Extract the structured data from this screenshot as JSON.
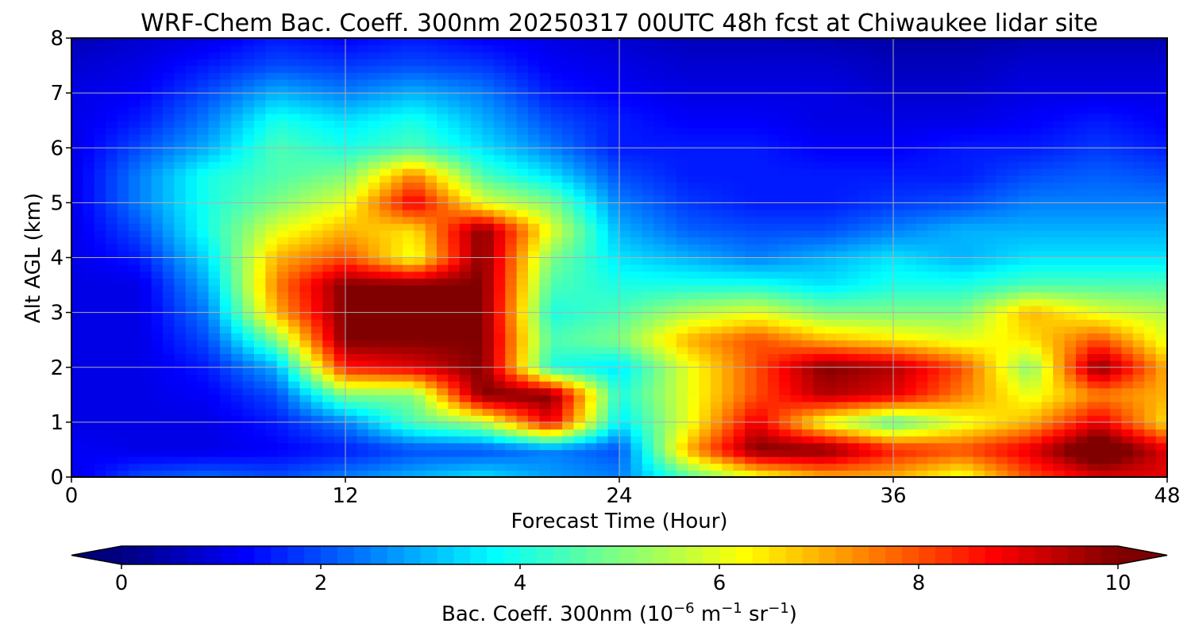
{
  "chart_data": {
    "type": "heatmap",
    "title": "WRF-Chem Bac. Coeff. 300nm  20250317 00UTC 48h fcst at Chiwaukee lidar site",
    "xlabel": "Forecast Time (Hour)",
    "ylabel": "Alt AGL (km)",
    "xlim": [
      0,
      48
    ],
    "ylim": [
      0,
      8
    ],
    "x_ticks": [
      0,
      12,
      24,
      36,
      48
    ],
    "y_ticks": [
      0,
      1,
      2,
      3,
      4,
      5,
      6,
      7,
      8
    ],
    "grid": true,
    "colormap": "jet",
    "colorbar": {
      "orientation": "horizontal",
      "placement": "bottom",
      "ticks": [
        0,
        2,
        4,
        6,
        8,
        10
      ],
      "range": [
        0,
        10
      ],
      "extend": "both",
      "label": {
        "text": "Bac. Coeff. 300nm  (10",
        "exp1": "−6",
        "mid": " m",
        "exp2": "−1",
        "mid2": " sr",
        "exp3": "−1",
        "end": ")"
      }
    },
    "x": [
      0,
      3,
      6,
      9,
      12,
      15,
      18,
      21,
      24,
      27,
      30,
      33,
      36,
      39,
      42,
      45,
      48
    ],
    "y": [
      0,
      0.5,
      1,
      1.5,
      2,
      2.5,
      3,
      3.5,
      4,
      4.5,
      5,
      5.5,
      6,
      6.5,
      7,
      7.5,
      8
    ],
    "z": [
      [
        1.0,
        2.0,
        2.3,
        2.0,
        2.5,
        3.0,
        3.5,
        2.8,
        2.5,
        4.5,
        6.0,
        7.0,
        7.0,
        6.0,
        8.0,
        9.0,
        9.0
      ],
      [
        1.2,
        1.0,
        1.0,
        1.2,
        1.5,
        2.0,
        2.0,
        2.5,
        2.0,
        7.0,
        10.0,
        10.0,
        8.5,
        8.0,
        9.0,
        11.0,
        9.0
      ],
      [
        1.0,
        1.0,
        1.0,
        1.5,
        2.5,
        4.5,
        5.5,
        9.0,
        3.5,
        6.0,
        9.0,
        6.0,
        4.5,
        6.0,
        7.0,
        9.0,
        6.5
      ],
      [
        1.0,
        1.0,
        1.2,
        2.0,
        5.0,
        5.0,
        10.0,
        10.0,
        4.0,
        6.0,
        8.0,
        9.5,
        9.0,
        7.5,
        6.0,
        7.5,
        7.0
      ],
      [
        1.0,
        1.0,
        1.5,
        3.0,
        8.5,
        9.0,
        10.0,
        4.0,
        3.5,
        6.0,
        8.0,
        10.0,
        9.5,
        8.0,
        5.0,
        10.0,
        7.0
      ],
      [
        1.0,
        1.0,
        2.0,
        5.0,
        10.0,
        10.0,
        10.0,
        4.5,
        5.0,
        7.0,
        8.0,
        7.0,
        6.5,
        6.0,
        6.5,
        8.0,
        6.0
      ],
      [
        1.0,
        1.0,
        2.5,
        7.0,
        10.0,
        10.0,
        10.0,
        4.0,
        4.5,
        5.5,
        6.0,
        5.0,
        5.0,
        5.0,
        7.0,
        6.0,
        5.5
      ],
      [
        1.0,
        1.0,
        3.0,
        7.5,
        10.0,
        10.0,
        10.0,
        4.5,
        4.0,
        4.0,
        4.0,
        3.5,
        4.0,
        4.0,
        4.5,
        4.5,
        4.5
      ],
      [
        1.0,
        1.5,
        3.5,
        7.0,
        8.0,
        6.0,
        10.0,
        5.0,
        3.5,
        3.0,
        2.5,
        3.0,
        3.5,
        3.0,
        3.5,
        3.5,
        3.5
      ],
      [
        1.0,
        2.0,
        4.0,
        6.0,
        7.0,
        6.5,
        10.0,
        6.0,
        3.0,
        2.2,
        2.0,
        2.0,
        2.5,
        3.0,
        3.0,
        3.0,
        3.0
      ],
      [
        1.0,
        2.5,
        4.0,
        5.0,
        6.0,
        9.0,
        6.0,
        5.0,
        2.5,
        1.8,
        1.5,
        1.5,
        1.8,
        2.0,
        2.5,
        2.5,
        2.5
      ],
      [
        1.0,
        2.5,
        4.0,
        4.5,
        5.0,
        7.5,
        4.5,
        3.5,
        2.0,
        1.5,
        1.5,
        1.5,
        1.5,
        1.5,
        2.0,
        2.2,
        2.0
      ],
      [
        1.0,
        2.0,
        3.0,
        4.5,
        4.0,
        4.5,
        3.5,
        2.5,
        1.5,
        1.5,
        1.5,
        1.2,
        1.2,
        1.5,
        1.5,
        1.8,
        1.5
      ],
      [
        1.0,
        1.5,
        2.5,
        4.0,
        3.5,
        4.0,
        3.0,
        2.0,
        1.5,
        1.2,
        1.2,
        1.0,
        1.0,
        1.0,
        1.2,
        1.5,
        1.2
      ],
      [
        1.0,
        1.2,
        2.0,
        3.0,
        2.5,
        3.0,
        2.5,
        1.5,
        1.2,
        1.0,
        1.0,
        1.0,
        0.8,
        0.8,
        1.0,
        1.0,
        1.0
      ],
      [
        0.8,
        1.0,
        1.5,
        2.0,
        1.8,
        2.0,
        1.8,
        1.2,
        1.0,
        0.8,
        0.8,
        0.8,
        0.6,
        0.6,
        0.8,
        0.8,
        0.8
      ],
      [
        0.5,
        0.8,
        1.0,
        1.5,
        1.2,
        1.5,
        1.2,
        1.0,
        0.8,
        0.6,
        0.6,
        0.5,
        0.4,
        0.4,
        0.5,
        0.5,
        0.5
      ]
    ]
  }
}
